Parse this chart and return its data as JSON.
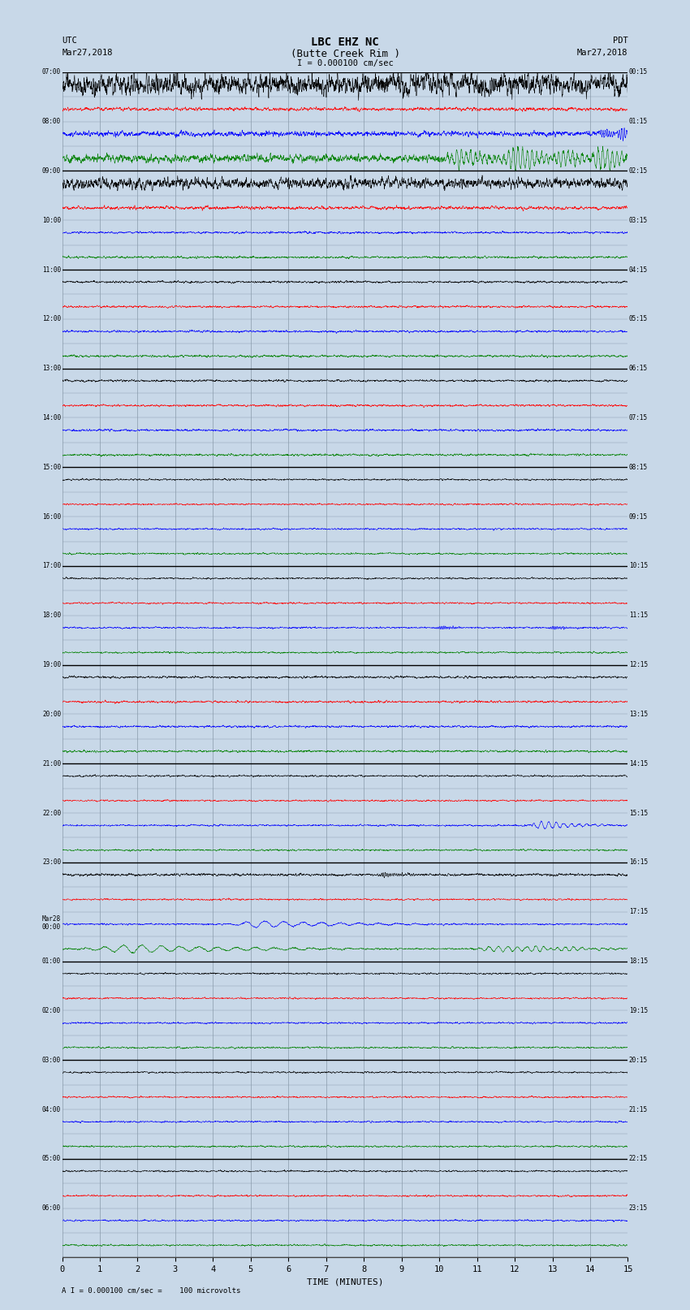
{
  "title_line1": "LBC EHZ NC",
  "title_line2": "(Butte Creek Rim )",
  "scale_text": "I = 0.000100 cm/sec",
  "footer_text": "A I = 0.000100 cm/sec =    100 microvolts",
  "utc_label": "UTC",
  "pdt_label": "PDT",
  "date_left": "Mar27,2018",
  "date_right": "Mar27,2018",
  "xlabel": "TIME (MINUTES)",
  "xlim": [
    0,
    15
  ],
  "xticks": [
    0,
    1,
    2,
    3,
    4,
    5,
    6,
    7,
    8,
    9,
    10,
    11,
    12,
    13,
    14,
    15
  ],
  "num_traces": 48,
  "trace_colors_pattern": [
    "black",
    "red",
    "blue",
    "green"
  ],
  "left_labels": [
    "07:00",
    "",
    "08:00",
    "",
    "09:00",
    "",
    "10:00",
    "",
    "11:00",
    "",
    "12:00",
    "",
    "13:00",
    "",
    "14:00",
    "",
    "15:00",
    "",
    "16:00",
    "",
    "17:00",
    "",
    "18:00",
    "",
    "19:00",
    "",
    "20:00",
    "",
    "21:00",
    "",
    "22:00",
    "",
    "23:00",
    "",
    "Mar28\n00:00",
    "",
    "01:00",
    "",
    "02:00",
    "",
    "03:00",
    "",
    "04:00",
    "",
    "05:00",
    "",
    "06:00",
    ""
  ],
  "right_labels": [
    "00:15",
    "",
    "01:15",
    "",
    "02:15",
    "",
    "03:15",
    "",
    "04:15",
    "",
    "05:15",
    "",
    "06:15",
    "",
    "07:15",
    "",
    "08:15",
    "",
    "09:15",
    "",
    "10:15",
    "",
    "11:15",
    "",
    "12:15",
    "",
    "13:15",
    "",
    "14:15",
    "",
    "15:15",
    "",
    "16:15",
    "",
    "17:15",
    "",
    "18:15",
    "",
    "19:15",
    "",
    "20:15",
    "",
    "21:15",
    "",
    "22:15",
    "",
    "23:15",
    ""
  ],
  "bg_color": "#c8d8e8",
  "grid_color": "#8899aa",
  "separator_color": "#000000",
  "trace_lw": 0.4,
  "fig_width": 8.5,
  "fig_height": 16.13
}
